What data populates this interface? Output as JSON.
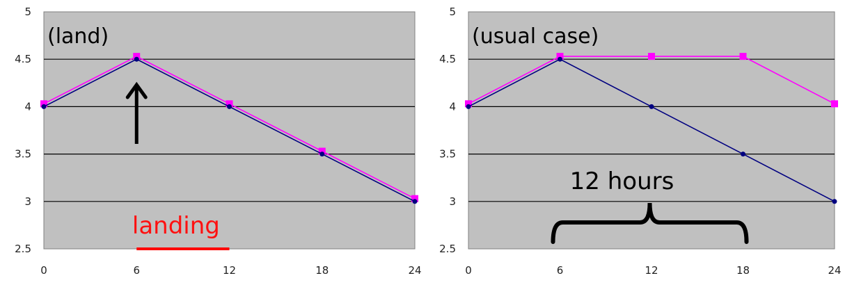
{
  "colors": {
    "plot_bg": "#c0c0c0",
    "gridline": "#000000",
    "series_pink": "#ff00ff",
    "series_navy": "#000080",
    "landing_text": "#ff0000",
    "annotation": "#000000"
  },
  "chart_data": [
    {
      "type": "line",
      "title": "(land)",
      "x": [
        0,
        6,
        12,
        18,
        24
      ],
      "ylim": [
        2.5,
        5
      ],
      "yticks": [
        "2.5",
        "3",
        "3.5",
        "4",
        "4.5",
        "5"
      ],
      "xticks": [
        "0",
        "6",
        "12",
        "18",
        "24"
      ],
      "grid": true,
      "series": [
        {
          "color": "#ff00ff",
          "values": [
            4.03,
            4.53,
            4.03,
            3.53,
            3.03
          ]
        },
        {
          "color": "#000080",
          "values": [
            4.0,
            4.5,
            4.0,
            3.5,
            3.0
          ]
        }
      ],
      "annotations": {
        "landing_label": "landing",
        "landing_span": [
          6,
          12
        ],
        "arrow_at_x": 6
      }
    },
    {
      "type": "line",
      "title": "(usual case)",
      "x": [
        0,
        6,
        12,
        18,
        24
      ],
      "ylim": [
        2.5,
        5
      ],
      "yticks": [
        "2.5",
        "3",
        "3.5",
        "4",
        "4.5",
        "5"
      ],
      "xticks": [
        "0",
        "6",
        "12",
        "18",
        "24"
      ],
      "grid": true,
      "series": [
        {
          "color": "#ff00ff",
          "values": [
            4.03,
            4.53,
            4.53,
            4.53,
            4.03
          ]
        },
        {
          "color": "#000080",
          "values": [
            4.0,
            4.5,
            4.0,
            3.5,
            3.0
          ]
        }
      ],
      "annotations": {
        "brace_label": "12 hours",
        "brace_span": [
          6,
          18
        ]
      }
    }
  ]
}
